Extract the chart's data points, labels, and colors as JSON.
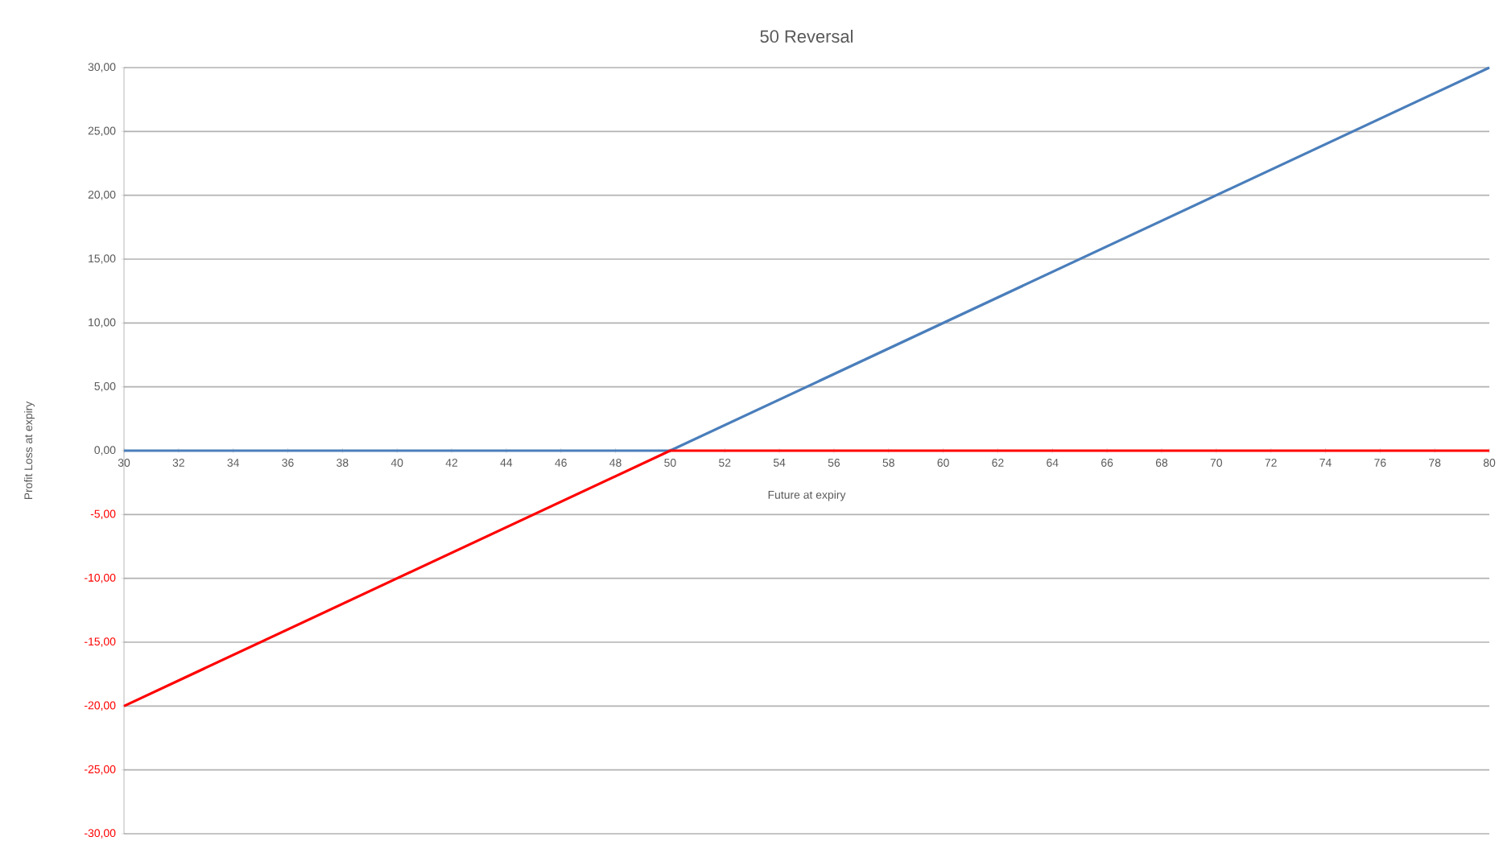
{
  "chart_data": {
    "type": "line",
    "title": "50  Reversal",
    "xlabel": "Future at expiry",
    "ylabel": "Profit Loss at expiry",
    "series": [
      {
        "color": "#4a7ebb",
        "x": [
          30,
          50,
          80
        ],
        "values": [
          0,
          0,
          30
        ]
      },
      {
        "color": "#ff0000",
        "x": [
          30,
          50,
          80
        ],
        "values": [
          -20,
          0,
          0
        ]
      }
    ],
    "xlim": [
      30,
      80
    ],
    "xticks": [
      30,
      32,
      34,
      36,
      38,
      40,
      42,
      44,
      46,
      48,
      50,
      52,
      54,
      56,
      58,
      60,
      62,
      64,
      66,
      68,
      70,
      72,
      74,
      76,
      78,
      80
    ],
    "ylim": [
      -30,
      30
    ],
    "yticks": [
      {
        "value": -30,
        "label": "-30,00"
      },
      {
        "value": -25,
        "label": "-25,00"
      },
      {
        "value": -20,
        "label": "-20,00"
      },
      {
        "value": -15,
        "label": "-15,00"
      },
      {
        "value": -10,
        "label": "-10,00"
      },
      {
        "value": -5,
        "label": "-5,00"
      },
      {
        "value": 0,
        "label": "0,00"
      },
      {
        "value": 5,
        "label": "5,00"
      },
      {
        "value": 10,
        "label": "10,00"
      },
      {
        "value": 15,
        "label": "15,00"
      },
      {
        "value": 20,
        "label": "20,00"
      },
      {
        "value": 25,
        "label": "25,00"
      },
      {
        "value": 30,
        "label": "30,00"
      }
    ],
    "grid": "y",
    "marker": "none",
    "line_style": "solid"
  }
}
